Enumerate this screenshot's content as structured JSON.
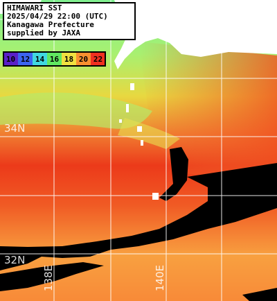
{
  "header": {
    "lines": [
      "HIMAWARI SST",
      "2025/04/29 22:00 (UTC)",
      "Kanagawa Prefecture",
      "supplied by JAXA"
    ]
  },
  "legend": {
    "items": [
      {
        "label": "10",
        "color": "#5a20c8"
      },
      {
        "label": "12",
        "color": "#3c64f0"
      },
      {
        "label": "14",
        "color": "#40d8e0"
      },
      {
        "label": "16",
        "color": "#60e860"
      },
      {
        "label": "18",
        "color": "#f0e040"
      },
      {
        "label": "20",
        "color": "#f89030"
      },
      {
        "label": "22",
        "color": "#f03020"
      }
    ]
  },
  "map": {
    "lat_labels": [
      "34N",
      "32N"
    ],
    "lon_labels": [
      "138E",
      "140E"
    ]
  }
}
